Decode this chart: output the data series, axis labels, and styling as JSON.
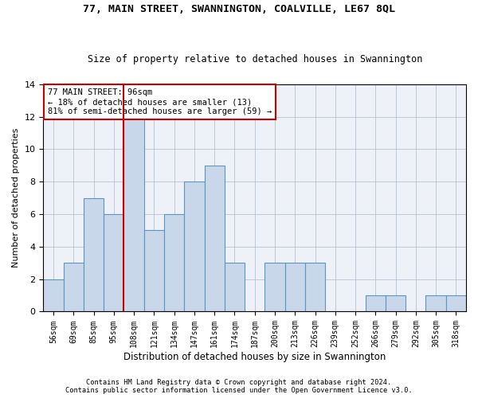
{
  "title1": "77, MAIN STREET, SWANNINGTON, COALVILLE, LE67 8QL",
  "title2": "Size of property relative to detached houses in Swannington",
  "xlabel": "Distribution of detached houses by size in Swannington",
  "ylabel": "Number of detached properties",
  "categories": [
    "56sqm",
    "69sqm",
    "85sqm",
    "95sqm",
    "108sqm",
    "121sqm",
    "134sqm",
    "147sqm",
    "161sqm",
    "174sqm",
    "187sqm",
    "200sqm",
    "213sqm",
    "226sqm",
    "239sqm",
    "252sqm",
    "266sqm",
    "279sqm",
    "292sqm",
    "305sqm",
    "318sqm"
  ],
  "values": [
    2,
    3,
    7,
    6,
    12,
    5,
    6,
    8,
    9,
    3,
    0,
    3,
    3,
    3,
    0,
    0,
    1,
    1,
    0,
    1,
    1
  ],
  "bar_color": "#c8d8ea",
  "bar_edge_color": "#5a96c0",
  "vline_x": 3.5,
  "vline_color": "#cc0000",
  "annotation_text": "77 MAIN STREET: 96sqm\n← 18% of detached houses are smaller (13)\n81% of semi-detached houses are larger (59) →",
  "annotation_box_color": "#ffffff",
  "annotation_box_edge": "#cc0000",
  "ylim": [
    0,
    14
  ],
  "yticks": [
    0,
    2,
    4,
    6,
    8,
    10,
    12,
    14
  ],
  "footer1": "Contains HM Land Registry data © Crown copyright and database right 2024.",
  "footer2": "Contains public sector information licensed under the Open Government Licence v3.0.",
  "bg_color": "#ffffff",
  "plot_bg_color": "#eef2f8"
}
